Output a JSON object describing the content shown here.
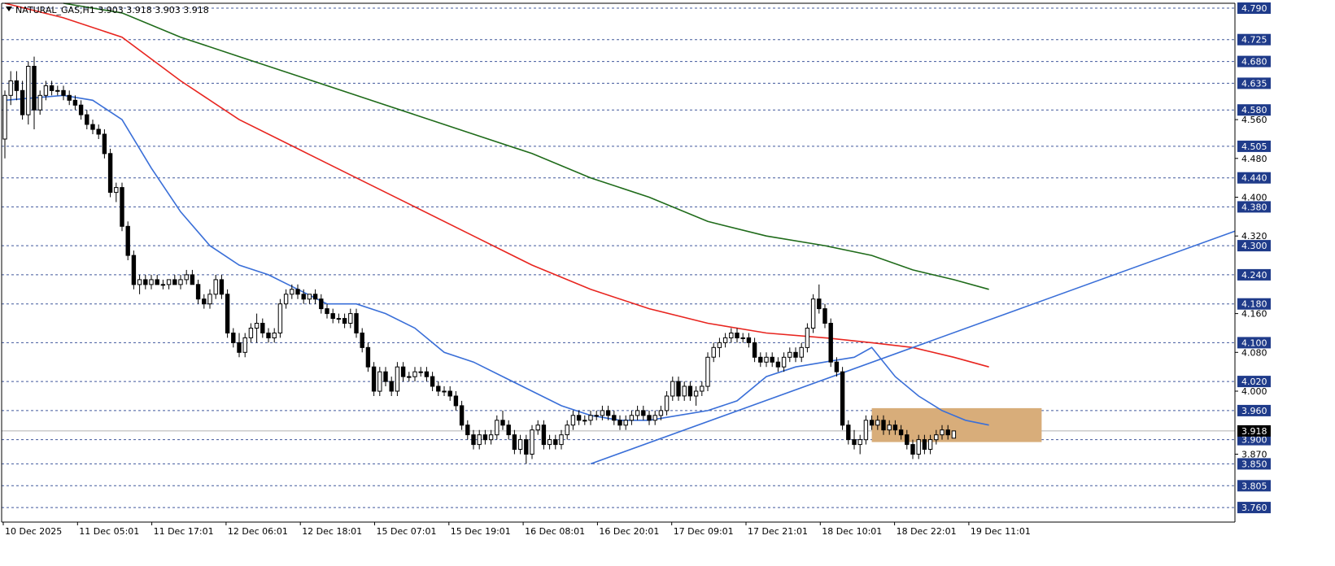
{
  "header": {
    "symbol_line": "NATURAL_GAS,H1  3.903 3.918 3.903 3.918"
  },
  "colors": {
    "background": "#ffffff",
    "grid": "#1f3b8a",
    "candle_bull": "#ffffff",
    "candle_bear": "#000000",
    "candle_wick": "#000000",
    "ma_fast": "#3a6fd8",
    "ma_mid": "#e8251f",
    "ma_slow": "#1f6b1a",
    "trendline": "#3a6fd8",
    "zone_fill": "#d8ad7a",
    "price_label_bg": "#1f3b8a",
    "current_label_bg": "#000000"
  },
  "chart_data": {
    "type": "candlestick",
    "symbol": "NATURAL_GAS",
    "timeframe": "H1",
    "last_ohlc": {
      "open": 3.903,
      "high": 3.918,
      "low": 3.903,
      "close": 3.918
    },
    "current_price": "3.918",
    "ylim": [
      3.73,
      4.8
    ],
    "grid_levels": [
      4.79,
      4.725,
      4.68,
      4.635,
      4.58,
      4.505,
      4.44,
      4.38,
      4.3,
      4.24,
      4.18,
      4.1,
      4.02,
      3.96,
      3.9,
      3.85,
      3.805,
      3.76
    ],
    "minor_ticks": [
      4.56,
      4.48,
      4.4,
      4.32,
      4.16,
      4.08,
      4.0,
      3.87
    ],
    "x_labels": [
      "10 Dec 2025",
      "11 Dec 05:01",
      "11 Dec 17:01",
      "12 Dec 06:01",
      "12 Dec 18:01",
      "15 Dec 07:01",
      "15 Dec 19:01",
      "16 Dec 08:01",
      "16 Dec 20:01",
      "17 Dec 09:01",
      "17 Dec 21:01",
      "18 Dec 10:01",
      "18 Dec 22:01",
      "19 Dec 11:01"
    ],
    "candles": [
      [
        4.52,
        4.62,
        4.48,
        4.61
      ],
      [
        4.61,
        4.66,
        4.59,
        4.64
      ],
      [
        4.64,
        4.66,
        4.6,
        4.62
      ],
      [
        4.62,
        4.64,
        4.56,
        4.57
      ],
      [
        4.57,
        4.68,
        4.55,
        4.67
      ],
      [
        4.67,
        4.69,
        4.54,
        4.58
      ],
      [
        4.58,
        4.62,
        4.57,
        4.61
      ],
      [
        4.61,
        4.64,
        4.6,
        4.63
      ],
      [
        4.63,
        4.64,
        4.61,
        4.62
      ],
      [
        4.62,
        4.63,
        4.61,
        4.62
      ],
      [
        4.62,
        4.63,
        4.6,
        4.61
      ],
      [
        4.61,
        4.62,
        4.59,
        4.6
      ],
      [
        4.6,
        4.61,
        4.58,
        4.59
      ],
      [
        4.59,
        4.6,
        4.56,
        4.57
      ],
      [
        4.57,
        4.58,
        4.54,
        4.55
      ],
      [
        4.55,
        4.56,
        4.53,
        4.54
      ],
      [
        4.54,
        4.55,
        4.52,
        4.53
      ],
      [
        4.53,
        4.54,
        4.48,
        4.49
      ],
      [
        4.49,
        4.5,
        4.4,
        4.41
      ],
      [
        4.41,
        4.43,
        4.39,
        4.42
      ],
      [
        4.42,
        4.43,
        4.33,
        4.34
      ],
      [
        4.34,
        4.35,
        4.27,
        4.28
      ],
      [
        4.28,
        4.29,
        4.21,
        4.22
      ],
      [
        4.22,
        4.24,
        4.2,
        4.23
      ],
      [
        4.23,
        4.24,
        4.21,
        4.22
      ],
      [
        4.22,
        4.24,
        4.21,
        4.23
      ],
      [
        4.23,
        4.24,
        4.22,
        4.22
      ],
      [
        4.22,
        4.23,
        4.21,
        4.22
      ],
      [
        4.22,
        4.23,
        4.21,
        4.23
      ],
      [
        4.23,
        4.24,
        4.22,
        4.22
      ],
      [
        4.22,
        4.24,
        4.21,
        4.23
      ],
      [
        4.23,
        4.25,
        4.22,
        4.24
      ],
      [
        4.24,
        4.25,
        4.22,
        4.22
      ],
      [
        4.22,
        4.23,
        4.18,
        4.19
      ],
      [
        4.19,
        4.2,
        4.17,
        4.18
      ],
      [
        4.18,
        4.21,
        4.17,
        4.2
      ],
      [
        4.2,
        4.24,
        4.19,
        4.23
      ],
      [
        4.23,
        4.24,
        4.19,
        4.2
      ],
      [
        4.2,
        4.21,
        4.11,
        4.12
      ],
      [
        4.12,
        4.13,
        4.09,
        4.1
      ],
      [
        4.1,
        4.12,
        4.07,
        4.08
      ],
      [
        4.08,
        4.12,
        4.07,
        4.11
      ],
      [
        4.11,
        4.14,
        4.1,
        4.13
      ],
      [
        4.13,
        4.16,
        4.1,
        4.14
      ],
      [
        4.14,
        4.15,
        4.11,
        4.12
      ],
      [
        4.12,
        4.13,
        4.1,
        4.11
      ],
      [
        4.11,
        4.13,
        4.1,
        4.12
      ],
      [
        4.12,
        4.19,
        4.11,
        4.18
      ],
      [
        4.18,
        4.21,
        4.17,
        4.2
      ],
      [
        4.2,
        4.22,
        4.19,
        4.21
      ],
      [
        4.21,
        4.22,
        4.19,
        4.2
      ],
      [
        4.2,
        4.21,
        4.18,
        4.19
      ],
      [
        4.19,
        4.2,
        4.18,
        4.2
      ],
      [
        4.2,
        4.21,
        4.18,
        4.19
      ],
      [
        4.19,
        4.2,
        4.16,
        4.17
      ],
      [
        4.17,
        4.18,
        4.15,
        4.16
      ],
      [
        4.16,
        4.17,
        4.14,
        4.15
      ],
      [
        4.15,
        4.16,
        4.14,
        4.15
      ],
      [
        4.15,
        4.16,
        4.13,
        4.14
      ],
      [
        4.14,
        4.17,
        4.13,
        4.16
      ],
      [
        4.16,
        4.17,
        4.11,
        4.12
      ],
      [
        4.12,
        4.13,
        4.08,
        4.09
      ],
      [
        4.09,
        4.1,
        4.04,
        4.05
      ],
      [
        4.05,
        4.06,
        3.99,
        4.0
      ],
      [
        4.0,
        4.05,
        3.99,
        4.04
      ],
      [
        4.04,
        4.05,
        4.01,
        4.02
      ],
      [
        4.02,
        4.03,
        3.99,
        4.0
      ],
      [
        4.0,
        4.06,
        3.99,
        4.05
      ],
      [
        4.05,
        4.06,
        4.02,
        4.03
      ],
      [
        4.03,
        4.04,
        4.02,
        4.03
      ],
      [
        4.03,
        4.05,
        4.02,
        4.04
      ],
      [
        4.04,
        4.05,
        4.03,
        4.04
      ],
      [
        4.04,
        4.05,
        4.02,
        4.03
      ],
      [
        4.03,
        4.04,
        4.0,
        4.01
      ],
      [
        4.01,
        4.02,
        3.99,
        4.0
      ],
      [
        4.0,
        4.01,
        3.99,
        4.0
      ],
      [
        4.0,
        4.01,
        3.98,
        3.99
      ],
      [
        3.99,
        4.0,
        3.96,
        3.97
      ],
      [
        3.97,
        3.98,
        3.92,
        3.93
      ],
      [
        3.93,
        3.94,
        3.9,
        3.91
      ],
      [
        3.91,
        3.92,
        3.88,
        3.89
      ],
      [
        3.89,
        3.92,
        3.88,
        3.91
      ],
      [
        3.91,
        3.92,
        3.89,
        3.9
      ],
      [
        3.9,
        3.92,
        3.89,
        3.91
      ],
      [
        3.91,
        3.95,
        3.9,
        3.94
      ],
      [
        3.94,
        3.96,
        3.92,
        3.93
      ],
      [
        3.93,
        3.94,
        3.9,
        3.91
      ],
      [
        3.91,
        3.92,
        3.87,
        3.88
      ],
      [
        3.88,
        3.91,
        3.87,
        3.9
      ],
      [
        3.9,
        3.91,
        3.85,
        3.87
      ],
      [
        3.87,
        3.93,
        3.86,
        3.92
      ],
      [
        3.92,
        3.94,
        3.91,
        3.93
      ],
      [
        3.93,
        3.94,
        3.88,
        3.89
      ],
      [
        3.89,
        3.91,
        3.88,
        3.9
      ],
      [
        3.9,
        3.91,
        3.88,
        3.89
      ],
      [
        3.89,
        3.92,
        3.88,
        3.91
      ],
      [
        3.91,
        3.94,
        3.9,
        3.93
      ],
      [
        3.93,
        3.96,
        3.92,
        3.95
      ],
      [
        3.95,
        3.96,
        3.93,
        3.94
      ],
      [
        3.94,
        3.95,
        3.93,
        3.94
      ],
      [
        3.94,
        3.96,
        3.93,
        3.95
      ],
      [
        3.95,
        3.96,
        3.94,
        3.95
      ],
      [
        3.95,
        3.97,
        3.94,
        3.96
      ],
      [
        3.96,
        3.97,
        3.94,
        3.95
      ],
      [
        3.95,
        3.96,
        3.93,
        3.94
      ],
      [
        3.94,
        3.95,
        3.92,
        3.93
      ],
      [
        3.93,
        3.95,
        3.92,
        3.94
      ],
      [
        3.94,
        3.96,
        3.93,
        3.95
      ],
      [
        3.95,
        3.97,
        3.94,
        3.96
      ],
      [
        3.96,
        3.97,
        3.94,
        3.95
      ],
      [
        3.95,
        3.96,
        3.93,
        3.94
      ],
      [
        3.94,
        3.96,
        3.93,
        3.95
      ],
      [
        3.95,
        3.97,
        3.94,
        3.96
      ],
      [
        3.96,
        4.0,
        3.95,
        3.99
      ],
      [
        3.99,
        4.03,
        3.98,
        4.02
      ],
      [
        4.02,
        4.03,
        3.98,
        3.99
      ],
      [
        3.99,
        4.02,
        3.98,
        4.01
      ],
      [
        4.01,
        4.02,
        3.98,
        3.99
      ],
      [
        3.99,
        4.01,
        3.97,
        4.0
      ],
      [
        4.0,
        4.02,
        3.99,
        4.01
      ],
      [
        4.01,
        4.08,
        4.0,
        4.07
      ],
      [
        4.07,
        4.1,
        4.06,
        4.09
      ],
      [
        4.09,
        4.11,
        4.07,
        4.1
      ],
      [
        4.1,
        4.12,
        4.09,
        4.11
      ],
      [
        4.11,
        4.13,
        4.1,
        4.12
      ],
      [
        4.12,
        4.13,
        4.1,
        4.11
      ],
      [
        4.11,
        4.12,
        4.1,
        4.11
      ],
      [
        4.11,
        4.12,
        4.09,
        4.1
      ],
      [
        4.1,
        4.11,
        4.06,
        4.07
      ],
      [
        4.07,
        4.08,
        4.05,
        4.06
      ],
      [
        4.06,
        4.08,
        4.05,
        4.07
      ],
      [
        4.07,
        4.08,
        4.05,
        4.06
      ],
      [
        4.06,
        4.07,
        4.04,
        4.05
      ],
      [
        4.05,
        4.08,
        4.04,
        4.07
      ],
      [
        4.07,
        4.09,
        4.06,
        4.08
      ],
      [
        4.08,
        4.09,
        4.06,
        4.07
      ],
      [
        4.07,
        4.1,
        4.06,
        4.09
      ],
      [
        4.09,
        4.14,
        4.08,
        4.13
      ],
      [
        4.13,
        4.2,
        4.12,
        4.19
      ],
      [
        4.19,
        4.22,
        4.16,
        4.17
      ],
      [
        4.17,
        4.18,
        4.13,
        4.14
      ],
      [
        4.14,
        4.15,
        4.05,
        4.06
      ],
      [
        4.06,
        4.07,
        4.03,
        4.04
      ],
      [
        4.04,
        4.05,
        3.92,
        3.93
      ],
      [
        3.93,
        3.94,
        3.89,
        3.9
      ],
      [
        3.9,
        3.92,
        3.88,
        3.89
      ],
      [
        3.89,
        3.91,
        3.87,
        3.9
      ],
      [
        3.9,
        3.95,
        3.89,
        3.94
      ],
      [
        3.94,
        3.95,
        3.92,
        3.93
      ],
      [
        3.93,
        3.95,
        3.92,
        3.94
      ],
      [
        3.94,
        3.95,
        3.91,
        3.92
      ],
      [
        3.92,
        3.94,
        3.91,
        3.93
      ],
      [
        3.93,
        3.94,
        3.91,
        3.92
      ],
      [
        3.92,
        3.93,
        3.9,
        3.91
      ],
      [
        3.91,
        3.92,
        3.88,
        3.89
      ],
      [
        3.89,
        3.9,
        3.86,
        3.87
      ],
      [
        3.87,
        3.91,
        3.86,
        3.9
      ],
      [
        3.9,
        3.91,
        3.87,
        3.88
      ],
      [
        3.88,
        3.91,
        3.87,
        3.9
      ],
      [
        3.9,
        3.92,
        3.89,
        3.91
      ],
      [
        3.91,
        3.93,
        3.9,
        3.92
      ],
      [
        3.92,
        3.93,
        3.9,
        3.91
      ],
      [
        3.903,
        3.918,
        3.903,
        3.918
      ]
    ],
    "series": [
      {
        "color": "#3a6fd8",
        "points": [
          [
            0,
            4.6
          ],
          [
            10,
            4.61
          ],
          [
            15,
            4.6
          ],
          [
            20,
            4.56
          ],
          [
            25,
            4.46
          ],
          [
            30,
            4.37
          ],
          [
            35,
            4.3
          ],
          [
            40,
            4.26
          ],
          [
            45,
            4.24
          ],
          [
            50,
            4.21
          ],
          [
            55,
            4.18
          ],
          [
            60,
            4.18
          ],
          [
            65,
            4.16
          ],
          [
            70,
            4.13
          ],
          [
            75,
            4.08
          ],
          [
            80,
            4.06
          ],
          [
            85,
            4.03
          ],
          [
            90,
            4.0
          ],
          [
            95,
            3.97
          ],
          [
            100,
            3.95
          ],
          [
            105,
            3.94
          ],
          [
            110,
            3.94
          ],
          [
            115,
            3.95
          ],
          [
            120,
            3.96
          ],
          [
            125,
            3.98
          ],
          [
            130,
            4.03
          ],
          [
            135,
            4.05
          ],
          [
            140,
            4.06
          ],
          [
            145,
            4.07
          ],
          [
            148,
            4.09
          ],
          [
            152,
            4.03
          ],
          [
            156,
            3.99
          ],
          [
            160,
            3.96
          ],
          [
            164,
            3.94
          ],
          [
            168,
            3.93
          ]
        ]
      },
      {
        "color": "#e8251f",
        "points": [
          [
            0,
            4.8
          ],
          [
            10,
            4.77
          ],
          [
            20,
            4.73
          ],
          [
            30,
            4.64
          ],
          [
            40,
            4.56
          ],
          [
            50,
            4.5
          ],
          [
            60,
            4.44
          ],
          [
            70,
            4.38
          ],
          [
            80,
            4.32
          ],
          [
            90,
            4.26
          ],
          [
            100,
            4.21
          ],
          [
            110,
            4.17
          ],
          [
            120,
            4.14
          ],
          [
            130,
            4.12
          ],
          [
            140,
            4.11
          ],
          [
            148,
            4.1
          ],
          [
            155,
            4.09
          ],
          [
            162,
            4.07
          ],
          [
            168,
            4.05
          ]
        ]
      },
      {
        "color": "#1f6b1a",
        "points": [
          [
            10,
            4.8
          ],
          [
            20,
            4.78
          ],
          [
            30,
            4.73
          ],
          [
            40,
            4.69
          ],
          [
            50,
            4.65
          ],
          [
            60,
            4.61
          ],
          [
            70,
            4.57
          ],
          [
            80,
            4.53
          ],
          [
            90,
            4.49
          ],
          [
            100,
            4.44
          ],
          [
            110,
            4.4
          ],
          [
            120,
            4.35
          ],
          [
            130,
            4.32
          ],
          [
            140,
            4.3
          ],
          [
            148,
            4.28
          ],
          [
            155,
            4.25
          ],
          [
            162,
            4.23
          ],
          [
            168,
            4.21
          ]
        ]
      }
    ],
    "trendline": {
      "from": [
        100,
        3.85
      ],
      "to": [
        210,
        4.33
      ]
    },
    "zone": {
      "from_index": 148,
      "to_index": 177,
      "high": 3.965,
      "low": 3.895
    }
  }
}
